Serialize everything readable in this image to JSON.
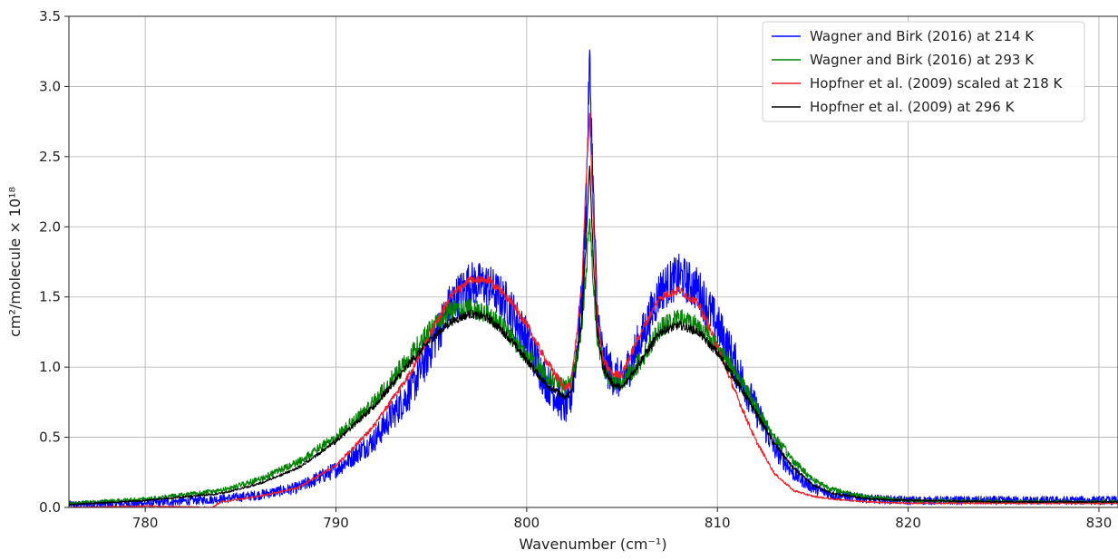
{
  "chart_data": {
    "type": "line",
    "title": "",
    "xlabel": "Wavenumber (cm⁻¹)",
    "ylabel": "cm²/molecule × 10¹⁸",
    "xlim": [
      776,
      831
    ],
    "ylim": [
      0,
      3.5
    ],
    "xticks": [
      780,
      790,
      800,
      810,
      820,
      830
    ],
    "yticks": [
      0.0,
      0.5,
      1.0,
      1.5,
      2.0,
      2.5,
      3.0,
      3.5
    ],
    "xtick_labels": [
      "780",
      "790",
      "800",
      "810",
      "820",
      "830"
    ],
    "ytick_labels": [
      "0.0",
      "0.5",
      "1.0",
      "1.5",
      "2.0",
      "2.5",
      "3.0",
      "3.5"
    ],
    "grid": true,
    "legend_position": "top-right",
    "series": [
      {
        "name": "Wagner and Birk (2016) at 214 K",
        "color": "#0000ff",
        "noise": 0.16,
        "x": [
          776,
          780,
          784,
          786,
          788,
          790,
          792,
          794,
          795,
          796,
          797,
          798,
          799,
          800,
          801,
          802,
          802.3,
          802.6,
          802.9,
          803.1,
          803.3,
          803.5,
          803.7,
          804,
          804.5,
          805,
          806,
          807,
          808,
          809,
          810,
          811,
          812,
          813,
          814,
          815,
          816,
          818,
          820,
          825,
          831
        ],
        "y": [
          0.02,
          0.03,
          0.06,
          0.09,
          0.14,
          0.27,
          0.48,
          0.85,
          1.15,
          1.45,
          1.6,
          1.58,
          1.45,
          1.2,
          0.9,
          0.7,
          0.75,
          1.1,
          1.5,
          2.1,
          3.2,
          2.2,
          1.4,
          1.05,
          0.95,
          0.9,
          1.2,
          1.55,
          1.65,
          1.55,
          1.3,
          1.0,
          0.7,
          0.42,
          0.24,
          0.14,
          0.09,
          0.06,
          0.05,
          0.05,
          0.05
        ]
      },
      {
        "name": "Wagner and Birk (2016) at 293 K",
        "color": "#008000",
        "noise": 0.07,
        "x": [
          776,
          780,
          784,
          786,
          788,
          790,
          792,
          794,
          795,
          796,
          797,
          798,
          799,
          800,
          801,
          802,
          802.3,
          802.6,
          802.9,
          803.1,
          803.3,
          803.5,
          803.7,
          804,
          804.5,
          805,
          806,
          807,
          808,
          809,
          810,
          811,
          812,
          813,
          814,
          815,
          816,
          818,
          820,
          825,
          831
        ],
        "y": [
          0.03,
          0.06,
          0.12,
          0.2,
          0.32,
          0.5,
          0.75,
          1.1,
          1.28,
          1.4,
          1.42,
          1.38,
          1.25,
          1.08,
          0.95,
          0.85,
          0.9,
          1.05,
          1.3,
          1.65,
          2.05,
          1.6,
          1.2,
          1.0,
          0.9,
          0.88,
          1.05,
          1.28,
          1.35,
          1.3,
          1.15,
          0.95,
          0.72,
          0.5,
          0.33,
          0.2,
          0.13,
          0.07,
          0.05,
          0.04,
          0.04
        ]
      },
      {
        "name": "Hopfner et al. (2009) scaled at 218 K",
        "color": "#e8202a",
        "noise": 0.03,
        "x": [
          776,
          780,
          783.5,
          784,
          786,
          788,
          790,
          792,
          794,
          795,
          796,
          797,
          798,
          799,
          800,
          801,
          802,
          802.3,
          802.6,
          802.9,
          803.1,
          803.3,
          803.5,
          803.7,
          804,
          804.5,
          805,
          806,
          807,
          808,
          809,
          810,
          811,
          812,
          813,
          814,
          815,
          816,
          818,
          820,
          825,
          831
        ],
        "y": [
          0.0,
          0.01,
          0.0,
          0.04,
          0.08,
          0.14,
          0.3,
          0.58,
          0.98,
          1.25,
          1.5,
          1.62,
          1.62,
          1.5,
          1.3,
          1.05,
          0.85,
          0.88,
          1.2,
          1.6,
          2.3,
          2.8,
          2.0,
          1.35,
          1.05,
          0.95,
          0.95,
          1.25,
          1.5,
          1.55,
          1.45,
          1.15,
          0.8,
          0.48,
          0.24,
          0.12,
          0.08,
          0.06,
          0.04,
          0.03,
          0.03,
          0.03
        ]
      },
      {
        "name": "Hopfner et al. (2009) at 296 K",
        "color": "#000000",
        "noise": 0.03,
        "x": [
          776,
          780,
          784,
          786,
          788,
          790,
          792,
          794,
          795,
          796,
          797,
          798,
          799,
          800,
          801,
          802,
          802.3,
          802.6,
          802.9,
          803.1,
          803.3,
          803.5,
          803.7,
          804,
          804.5,
          805,
          806,
          807,
          808,
          809,
          810,
          811,
          812,
          813,
          814,
          815,
          816,
          818,
          820,
          825,
          831
        ],
        "y": [
          0.02,
          0.05,
          0.1,
          0.17,
          0.28,
          0.47,
          0.72,
          1.05,
          1.2,
          1.32,
          1.38,
          1.35,
          1.22,
          1.05,
          0.88,
          0.78,
          0.82,
          1.0,
          1.35,
          1.85,
          2.45,
          1.75,
          1.25,
          1.0,
          0.88,
          0.85,
          1.05,
          1.25,
          1.3,
          1.25,
          1.1,
          0.9,
          0.68,
          0.45,
          0.28,
          0.16,
          0.1,
          0.06,
          0.05,
          0.04,
          0.04
        ]
      }
    ]
  }
}
